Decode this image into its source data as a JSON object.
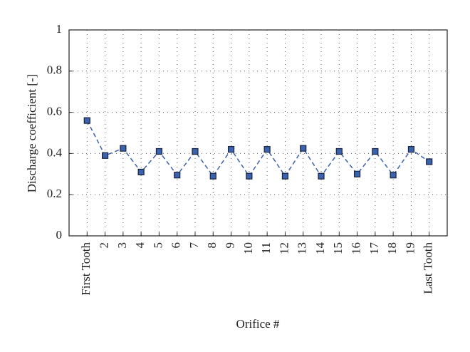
{
  "chart_data": {
    "type": "line",
    "x_label": "Orifice #",
    "y_label": "Discharge coefficient [-]",
    "categories": [
      "First Tooth",
      "2",
      "3",
      "4",
      "5",
      "6",
      "7",
      "8",
      "9",
      "10",
      "11",
      "12",
      "13",
      "14",
      "15",
      "16",
      "17",
      "18",
      "19",
      "Last Tooth"
    ],
    "series": [
      {
        "color": "#3a62ad",
        "values": [
          0.56,
          0.39,
          0.425,
          0.31,
          0.41,
          0.295,
          0.41,
          0.29,
          0.42,
          0.29,
          0.42,
          0.29,
          0.425,
          0.29,
          0.41,
          0.3,
          0.41,
          0.295,
          0.42,
          0.36
        ]
      }
    ],
    "ylim": [
      0,
      1
    ],
    "yticks": [
      0,
      0.2,
      0.4,
      0.6,
      0.8,
      1
    ],
    "grid": true
  }
}
